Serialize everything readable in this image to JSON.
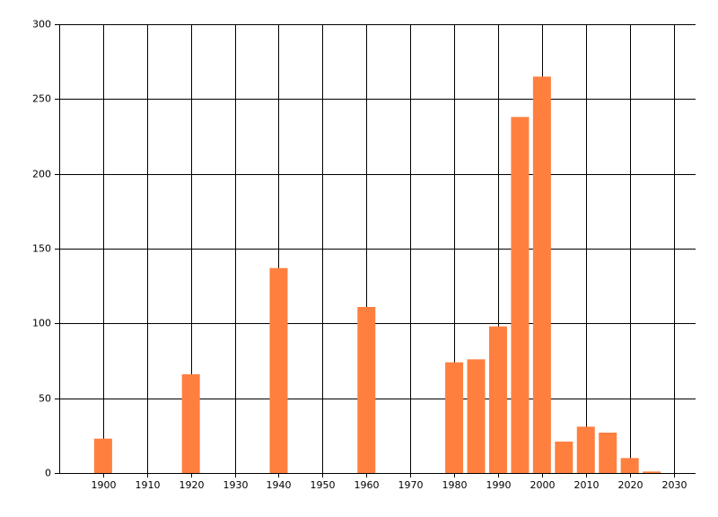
{
  "chart_data": {
    "type": "bar",
    "x": [
      1900,
      1920,
      1940,
      1960,
      1980,
      1985,
      1990,
      1995,
      2000,
      2005,
      2010,
      2015,
      2020,
      2025
    ],
    "values": [
      23,
      66,
      137,
      111,
      74,
      76,
      98,
      238,
      265,
      21,
      31,
      27,
      10,
      1
    ],
    "color": "#ff7f3f",
    "xlim": [
      1890,
      2035
    ],
    "xticks": [
      1900,
      1910,
      1920,
      1930,
      1940,
      1950,
      1960,
      1970,
      1980,
      1990,
      2000,
      2010,
      2020,
      2030
    ],
    "ylim": [
      0,
      300
    ],
    "yticks": [
      0,
      50,
      100,
      150,
      200,
      250,
      300
    ],
    "grid": true
  }
}
